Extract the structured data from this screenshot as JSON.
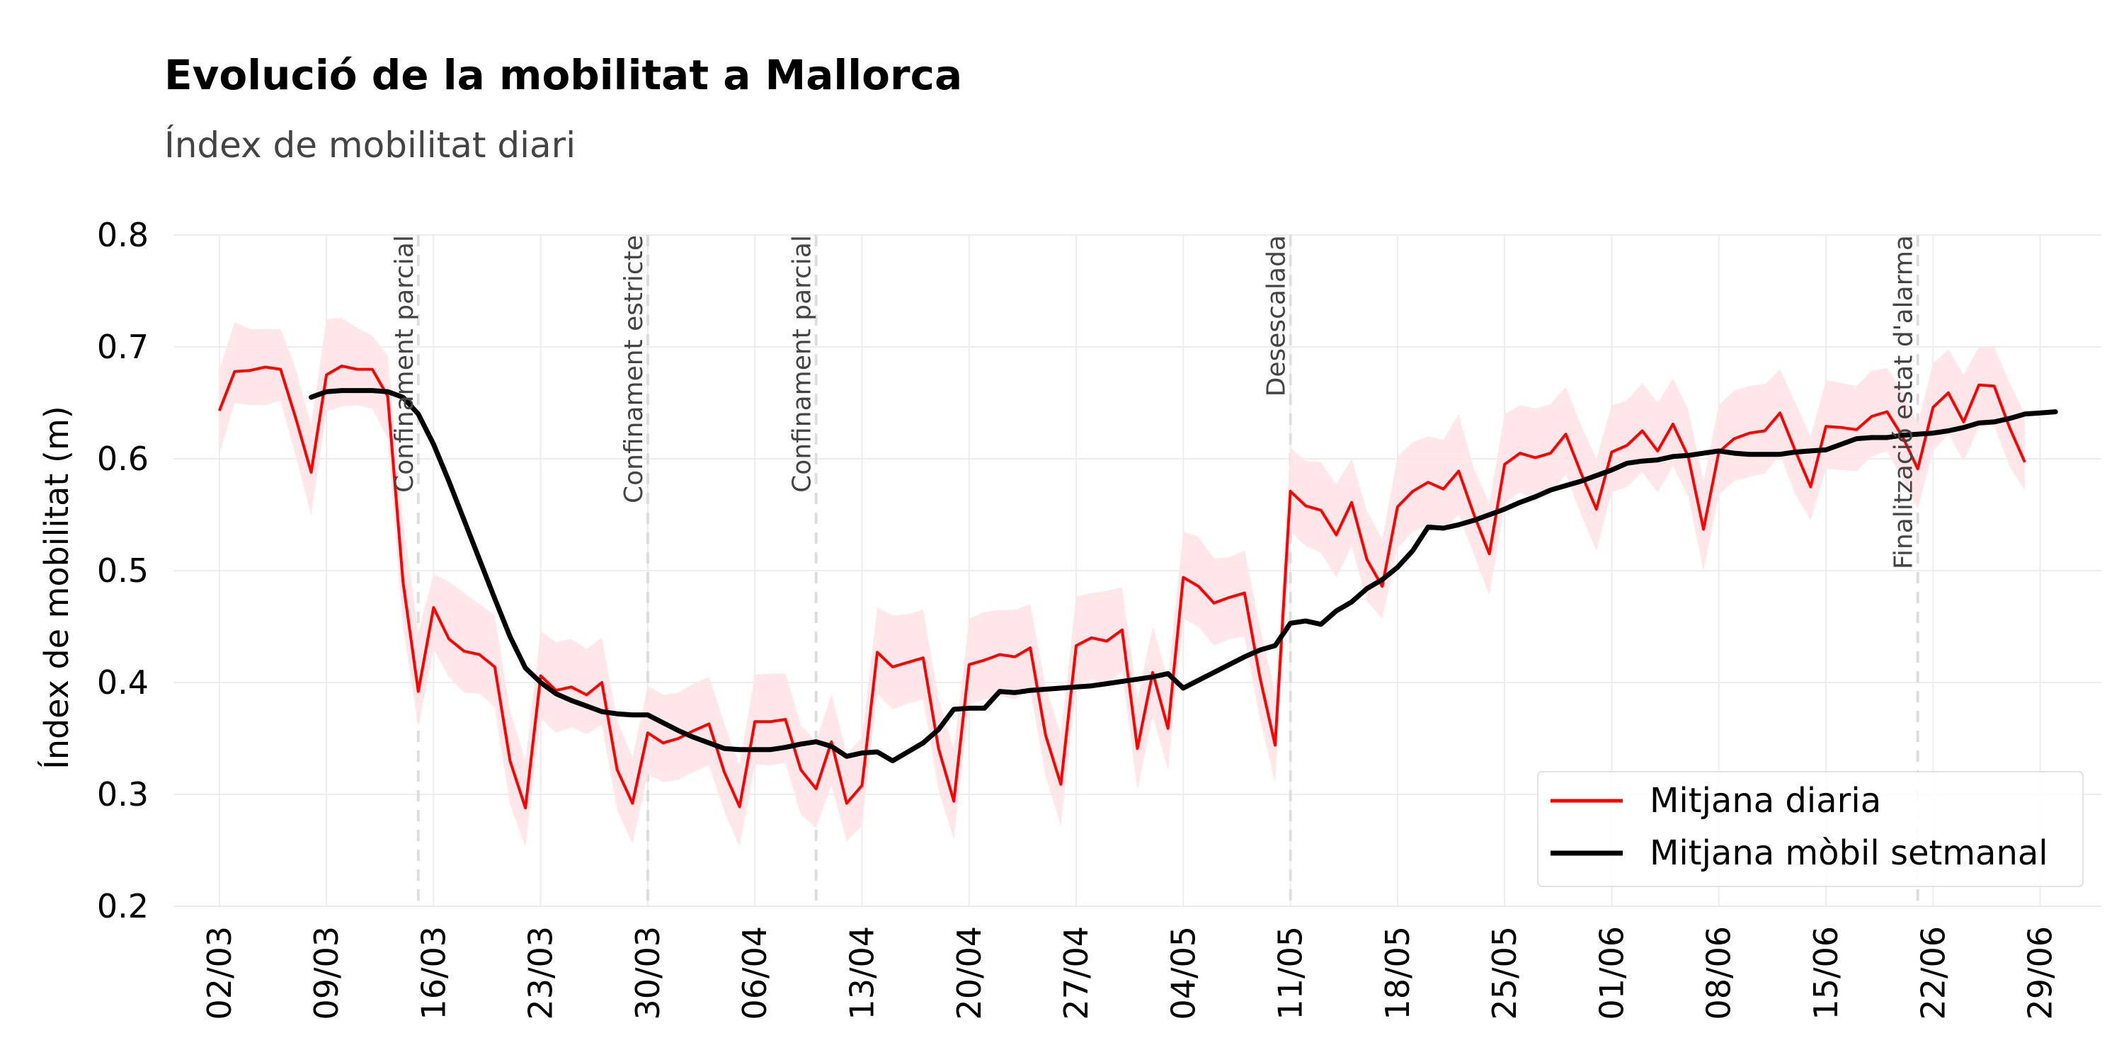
{
  "chart_data": {
    "type": "line",
    "title": "Evolució de la mobilitat a Mallorca",
    "subtitle": "Índex de mobilitat diari",
    "ylabel": "Índex de mobilitat (m)",
    "xlabel": "",
    "ylim": [
      0.2,
      0.8
    ],
    "yticks": [
      0.2,
      0.3,
      0.4,
      0.5,
      0.6,
      0.7,
      0.8
    ],
    "xlim": [
      "2020-02-28",
      "2020-07-03"
    ],
    "xticks": [
      {
        "date": "2020-03-02",
        "label": "02/03"
      },
      {
        "date": "2020-03-09",
        "label": "09/03"
      },
      {
        "date": "2020-03-16",
        "label": "16/03"
      },
      {
        "date": "2020-03-23",
        "label": "23/03"
      },
      {
        "date": "2020-03-30",
        "label": "30/03"
      },
      {
        "date": "2020-04-06",
        "label": "06/04"
      },
      {
        "date": "2020-04-13",
        "label": "13/04"
      },
      {
        "date": "2020-04-20",
        "label": "20/04"
      },
      {
        "date": "2020-04-27",
        "label": "27/04"
      },
      {
        "date": "2020-05-04",
        "label": "04/05"
      },
      {
        "date": "2020-05-11",
        "label": "11/05"
      },
      {
        "date": "2020-05-18",
        "label": "18/05"
      },
      {
        "date": "2020-05-25",
        "label": "25/05"
      },
      {
        "date": "2020-06-01",
        "label": "01/06"
      },
      {
        "date": "2020-06-08",
        "label": "08/06"
      },
      {
        "date": "2020-06-15",
        "label": "15/06"
      },
      {
        "date": "2020-06-22",
        "label": "22/06"
      },
      {
        "date": "2020-06-29",
        "label": "29/06"
      }
    ],
    "grid": true,
    "legend_position": "bottom-right",
    "colors": {
      "daily": "#ff0000",
      "band": "#ffe3e6",
      "weekly": "#000000",
      "event": "#dddddd"
    },
    "events": [
      {
        "date": "2020-03-15",
        "label": "Confinament parcial"
      },
      {
        "date": "2020-03-30",
        "label": "Confinament estricte"
      },
      {
        "date": "2020-04-10",
        "label": "Confinament parcial"
      },
      {
        "date": "2020-05-11",
        "label": "Desescalada"
      },
      {
        "date": "2020-06-21",
        "label": "Finalització estat d'alarma"
      }
    ],
    "series": [
      {
        "name": "Mitjana diaria",
        "start_date": "2020-03-02",
        "values": [
          0.643,
          0.678,
          0.679,
          0.682,
          0.68,
          0.636,
          0.588,
          0.675,
          0.683,
          0.68,
          0.68,
          0.656,
          0.49,
          0.392,
          0.467,
          0.439,
          0.428,
          0.425,
          0.414,
          0.33,
          0.288,
          0.406,
          0.393,
          0.396,
          0.389,
          0.4,
          0.322,
          0.292,
          0.355,
          0.346,
          0.35,
          0.357,
          0.363,
          0.32,
          0.289,
          0.365,
          0.365,
          0.367,
          0.322,
          0.305,
          0.347,
          0.292,
          0.308,
          0.427,
          0.414,
          0.418,
          0.422,
          0.341,
          0.294,
          0.416,
          0.42,
          0.425,
          0.423,
          0.431,
          0.353,
          0.309,
          0.433,
          0.44,
          0.437,
          0.447,
          0.341,
          0.409,
          0.359,
          0.494,
          0.486,
          0.471,
          0.476,
          0.48,
          0.405,
          0.344,
          0.571,
          0.558,
          0.554,
          0.532,
          0.561,
          0.51,
          0.486,
          0.557,
          0.571,
          0.579,
          0.573,
          0.589,
          0.55,
          0.515,
          0.595,
          0.605,
          0.601,
          0.605,
          0.622,
          0.587,
          0.555,
          0.606,
          0.612,
          0.625,
          0.607,
          0.631,
          0.602,
          0.537,
          0.606,
          0.618,
          0.623,
          0.625,
          0.641,
          0.607,
          0.575,
          0.629,
          0.628,
          0.626,
          0.638,
          0.642,
          0.62,
          0.591,
          0.646,
          0.659,
          0.633,
          0.666,
          0.665,
          0.628,
          0.597
        ],
        "upper": [
          0.68,
          0.722,
          0.716,
          0.716,
          0.716,
          0.68,
          0.63,
          0.725,
          0.726,
          0.717,
          0.71,
          0.692,
          0.545,
          0.445,
          0.497,
          0.49,
          0.48,
          0.47,
          0.46,
          0.375,
          0.33,
          0.446,
          0.436,
          0.439,
          0.43,
          0.44,
          0.366,
          0.333,
          0.397,
          0.389,
          0.391,
          0.399,
          0.405,
          0.363,
          0.326,
          0.407,
          0.408,
          0.408,
          0.362,
          0.347,
          0.39,
          0.336,
          0.351,
          0.467,
          0.46,
          0.461,
          0.465,
          0.386,
          0.34,
          0.457,
          0.463,
          0.465,
          0.465,
          0.47,
          0.396,
          0.354,
          0.477,
          0.48,
          0.482,
          0.485,
          0.385,
          0.45,
          0.404,
          0.535,
          0.53,
          0.511,
          0.512,
          0.518,
          0.45,
          0.39,
          0.61,
          0.598,
          0.597,
          0.577,
          0.6,
          0.553,
          0.528,
          0.602,
          0.615,
          0.62,
          0.617,
          0.64,
          0.591,
          0.56,
          0.64,
          0.648,
          0.645,
          0.649,
          0.664,
          0.63,
          0.6,
          0.648,
          0.652,
          0.668,
          0.65,
          0.672,
          0.644,
          0.58,
          0.648,
          0.661,
          0.665,
          0.667,
          0.68,
          0.65,
          0.62,
          0.67,
          0.668,
          0.665,
          0.679,
          0.681,
          0.66,
          0.632,
          0.685,
          0.698,
          0.675,
          0.7,
          0.7,
          0.668,
          0.64
        ],
        "lower": [
          0.605,
          0.65,
          0.648,
          0.648,
          0.652,
          0.602,
          0.55,
          0.642,
          0.647,
          0.648,
          0.645,
          0.618,
          0.45,
          0.36,
          0.43,
          0.405,
          0.391,
          0.39,
          0.378,
          0.291,
          0.253,
          0.368,
          0.355,
          0.36,
          0.354,
          0.362,
          0.286,
          0.256,
          0.318,
          0.311,
          0.313,
          0.32,
          0.326,
          0.285,
          0.253,
          0.327,
          0.326,
          0.328,
          0.282,
          0.27,
          0.308,
          0.258,
          0.272,
          0.39,
          0.376,
          0.381,
          0.385,
          0.304,
          0.26,
          0.38,
          0.385,
          0.388,
          0.385,
          0.394,
          0.316,
          0.272,
          0.396,
          0.403,
          0.398,
          0.41,
          0.304,
          0.37,
          0.322,
          0.457,
          0.45,
          0.433,
          0.439,
          0.441,
          0.368,
          0.31,
          0.535,
          0.522,
          0.516,
          0.494,
          0.522,
          0.473,
          0.457,
          0.52,
          0.535,
          0.54,
          0.537,
          0.55,
          0.514,
          0.478,
          0.56,
          0.57,
          0.563,
          0.568,
          0.586,
          0.55,
          0.518,
          0.57,
          0.575,
          0.588,
          0.57,
          0.594,
          0.566,
          0.5,
          0.568,
          0.58,
          0.584,
          0.587,
          0.604,
          0.568,
          0.545,
          0.591,
          0.59,
          0.589,
          0.602,
          0.607,
          0.582,
          0.555,
          0.607,
          0.622,
          0.598,
          0.628,
          0.63,
          0.593,
          0.572
        ]
      },
      {
        "name": "Mitjana mòbil setmanal",
        "start_date": "2020-03-08",
        "values": [
          0.655,
          0.66,
          0.661,
          0.661,
          0.661,
          0.66,
          0.655,
          0.64,
          0.613,
          0.58,
          0.545,
          0.51,
          0.475,
          0.441,
          0.413,
          0.4,
          0.39,
          0.384,
          0.379,
          0.374,
          0.372,
          0.371,
          0.371,
          0.364,
          0.357,
          0.351,
          0.346,
          0.341,
          0.34,
          0.34,
          0.34,
          0.342,
          0.345,
          0.347,
          0.343,
          0.334,
          0.337,
          0.338,
          0.33,
          0.338,
          0.346,
          0.358,
          0.376,
          0.377,
          0.377,
          0.392,
          0.391,
          0.393,
          0.394,
          0.395,
          0.396,
          0.397,
          0.399,
          0.401,
          0.403,
          0.405,
          0.408,
          0.395,
          0.402,
          0.409,
          0.416,
          0.423,
          0.429,
          0.433,
          0.453,
          0.455,
          0.452,
          0.464,
          0.472,
          0.484,
          0.492,
          0.503,
          0.518,
          0.539,
          0.538,
          0.541,
          0.545,
          0.55,
          0.555,
          0.561,
          0.566,
          0.572,
          0.576,
          0.58,
          0.585,
          0.59,
          0.596,
          0.598,
          0.599,
          0.602,
          0.603,
          0.605,
          0.607,
          0.605,
          0.604,
          0.604,
          0.604,
          0.606,
          0.607,
          0.608,
          0.613,
          0.618,
          0.619,
          0.619,
          0.621,
          0.622,
          0.623,
          0.625,
          0.628,
          0.632,
          0.633,
          0.636,
          0.64,
          0.641,
          0.642
        ]
      }
    ]
  }
}
